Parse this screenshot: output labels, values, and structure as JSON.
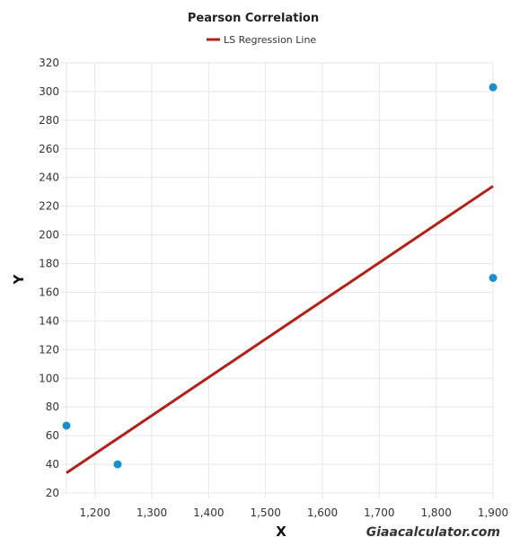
{
  "chart_data": {
    "type": "scatter",
    "title": "Pearson Correlation",
    "xlabel": "X",
    "ylabel": "Y",
    "xlim": [
      1150,
      1900
    ],
    "ylim": [
      20,
      320
    ],
    "x_ticks": [
      1200,
      1300,
      1400,
      1500,
      1600,
      1700,
      1800,
      1900
    ],
    "x_tick_labels": [
      "1,200",
      "1,300",
      "1,400",
      "1,500",
      "1,600",
      "1,700",
      "1,800",
      "1,900"
    ],
    "y_ticks": [
      20,
      40,
      60,
      80,
      100,
      120,
      140,
      160,
      180,
      200,
      220,
      240,
      260,
      280,
      300,
      320
    ],
    "y_tick_labels": [
      "20",
      "40",
      "60",
      "80",
      "100",
      "120",
      "140",
      "160",
      "180",
      "200",
      "220",
      "240",
      "260",
      "280",
      "300",
      "320"
    ],
    "grid": true,
    "legend_position": "top-center",
    "legend": [
      "LS Regression Line"
    ],
    "points": [
      {
        "x": 1150,
        "y": 67
      },
      {
        "x": 1240,
        "y": 40
      },
      {
        "x": 1900,
        "y": 303
      },
      {
        "x": 1900,
        "y": 170
      }
    ],
    "regression_line": {
      "name": "LS Regression Line",
      "start": {
        "x": 1150,
        "y": 34
      },
      "end": {
        "x": 1900,
        "y": 234
      }
    },
    "colors": {
      "points": "#1a8fcf",
      "line": "#b22018",
      "grid": "#e6e6e6"
    }
  },
  "watermark": "Giaacalculator.com"
}
